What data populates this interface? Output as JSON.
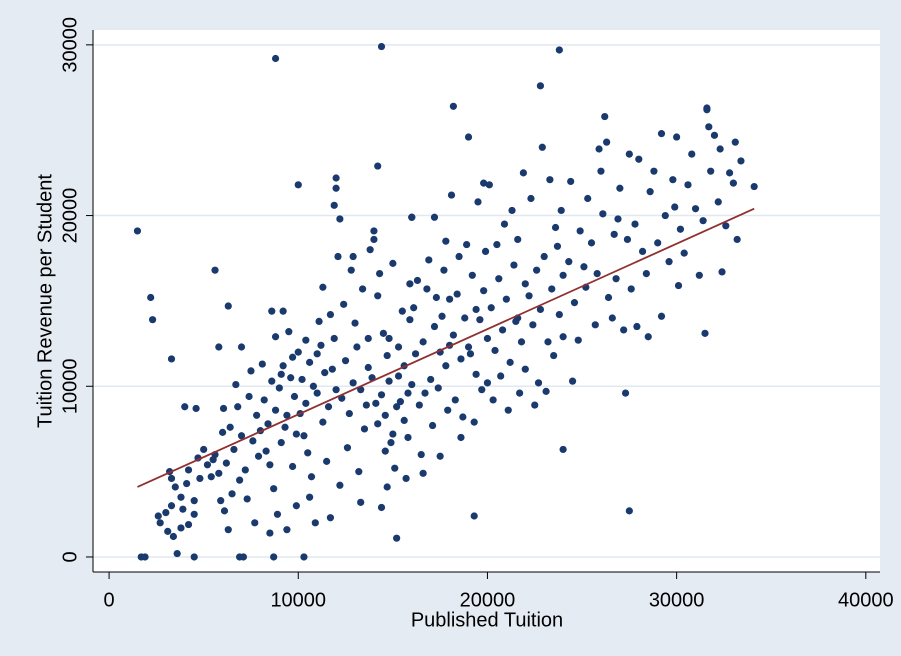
{
  "chart_data": {
    "type": "scatter",
    "xlabel": "Published Tuition",
    "ylabel": "Tuition Revenue per Student",
    "xlim": [
      -850,
      40750
    ],
    "ylim": [
      -880,
      30870
    ],
    "xticks": [
      0,
      10000,
      20000,
      30000,
      40000
    ],
    "yticks": [
      0,
      10000,
      20000,
      30000
    ],
    "grid": true,
    "scatter": {
      "color": "#1a3a6e",
      "x": [
        1500,
        2200,
        2300,
        8800,
        14400,
        23800,
        22800,
        18200,
        26200,
        31600,
        19000,
        29200,
        10000,
        14200,
        27500,
        27300,
        24000,
        19300,
        15200,
        1700,
        1900,
        4500,
        6900,
        7100,
        8700,
        10300,
        3300,
        5600,
        6300,
        5800,
        7000,
        4000,
        4600,
        8600,
        9200,
        17200,
        16000,
        25900,
        27500,
        33100,
        34100,
        3200,
        3300,
        3500,
        3800,
        4200,
        4500,
        3000,
        2600,
        2700,
        3400,
        3600,
        3800,
        4200,
        4500,
        4800,
        5000,
        5200,
        5400,
        4700,
        4100,
        3300,
        3100,
        3900,
        5600,
        5800,
        6000,
        6200,
        6400,
        6600,
        6800,
        7000,
        7200,
        7400,
        7600,
        7800,
        8000,
        6100,
        6300,
        6500,
        7300,
        7700,
        5900,
        6700,
        6900,
        7500,
        7900,
        5500,
        6050,
        8200,
        8400,
        8600,
        8800,
        9000,
        9200,
        9400,
        9600,
        9800,
        10000,
        8300,
        8500,
        8700,
        8900,
        9100,
        9300,
        9500,
        9700,
        9900,
        8100,
        8800,
        9400,
        9900,
        9100,
        9700,
        8500,
        10200,
        10400,
        10600,
        10800,
        11000,
        11200,
        11400,
        11600,
        11800,
        12000,
        10300,
        10500,
        10700,
        10900,
        11100,
        11300,
        11500,
        11700,
        11900,
        12000,
        12000,
        10100,
        10600,
        11300,
        11900,
        11000,
        10400,
        11700,
        12100,
        12200,
        12300,
        12500,
        12700,
        12900,
        13100,
        13300,
        13500,
        13700,
        13900,
        12400,
        12600,
        12800,
        13000,
        13200,
        13400,
        13600,
        13800,
        14000,
        14000,
        14100,
        13300,
        12900,
        12200,
        13700,
        14200,
        14400,
        14600,
        14800,
        15000,
        15200,
        15400,
        15600,
        15800,
        16000,
        14300,
        14500,
        14700,
        14900,
        15100,
        15300,
        15500,
        15700,
        15900,
        14400,
        14700,
        15800,
        14200,
        15000,
        15600,
        16000,
        14800,
        15300,
        14600,
        15900,
        16200,
        16400,
        16600,
        16800,
        17000,
        17200,
        17400,
        17600,
        17800,
        18000,
        16300,
        16500,
        16700,
        16900,
        17100,
        17300,
        17500,
        17700,
        17900,
        16100,
        17500,
        16600,
        17800,
        18000,
        18200,
        18400,
        18600,
        18800,
        19000,
        19200,
        19400,
        19600,
        19800,
        20000,
        18300,
        18500,
        18700,
        18900,
        19100,
        19300,
        19500,
        19700,
        19900,
        18100,
        19800,
        20000,
        18600,
        19400,
        20200,
        20400,
        20600,
        20800,
        21000,
        21200,
        21400,
        21600,
        21800,
        22000,
        20300,
        20500,
        20700,
        20900,
        21100,
        21300,
        21500,
        21700,
        21900,
        20100,
        21600,
        22000,
        22200,
        22400,
        22600,
        22800,
        23000,
        23200,
        23400,
        23600,
        23800,
        24000,
        22300,
        22700,
        22900,
        23100,
        23300,
        23500,
        23700,
        23900,
        22500,
        24000,
        24300,
        24600,
        24900,
        25200,
        25500,
        25800,
        26100,
        26400,
        26700,
        27000,
        24400,
        24800,
        25300,
        25700,
        26000,
        26300,
        26600,
        26900,
        24500,
        25100,
        26800,
        27200,
        27400,
        27800,
        28200,
        28600,
        29000,
        29400,
        29800,
        30200,
        30600,
        31000,
        31400,
        31800,
        32200,
        32600,
        33000,
        27600,
        28000,
        28400,
        28800,
        29200,
        29600,
        30000,
        30400,
        30800,
        31200,
        31500,
        31700,
        32000,
        32400,
        32800,
        33200,
        31600,
        30100,
        29900,
        28500,
        27900,
        33400,
        32300
      ],
      "values": [
        19100,
        15200,
        13900,
        29200,
        29900,
        29700,
        27600,
        26400,
        25800,
        26300,
        24600,
        24800,
        21800,
        22900,
        2700,
        9600,
        6300,
        2400,
        1100,
        0,
        0,
        0,
        0,
        0,
        0,
        0,
        11600,
        16800,
        14700,
        12300,
        12300,
        8800,
        8700,
        14400,
        14400,
        19900,
        19900,
        23900,
        23600,
        24300,
        21700,
        5000,
        4600,
        4100,
        3500,
        5100,
        3300,
        2600,
        2400,
        2000,
        1200,
        200,
        1700,
        1900,
        2500,
        4600,
        6300,
        5400,
        4700,
        5800,
        4300,
        3000,
        1500,
        2800,
        6000,
        4900,
        7300,
        5500,
        7600,
        6300,
        8800,
        7100,
        5100,
        9400,
        6800,
        8300,
        7400,
        2700,
        1600,
        3700,
        3400,
        2000,
        3300,
        10100,
        4500,
        10900,
        5900,
        5700,
        8700,
        9200,
        7800,
        10300,
        8600,
        9900,
        11200,
        8300,
        10500,
        9400,
        12000,
        6200,
        5400,
        4000,
        2500,
        6700,
        7600,
        13200,
        5300,
        3000,
        11300,
        12900,
        1600,
        7200,
        10700,
        11700,
        1400,
        10400,
        9000,
        11400,
        10000,
        9600,
        12400,
        10800,
        8800,
        11000,
        9800,
        7100,
        6100,
        4700,
        2000,
        13800,
        15800,
        5600,
        14200,
        20600,
        22200,
        21600,
        8400,
        3500,
        7900,
        12800,
        11900,
        12700,
        2300,
        17600,
        19800,
        9300,
        11500,
        8400,
        10200,
        12300,
        9800,
        7500,
        11100,
        10500,
        14800,
        6400,
        16800,
        13700,
        5000,
        15700,
        8900,
        18000,
        19100,
        18600,
        9000,
        3200,
        17600,
        4200,
        12800,
        7800,
        9500,
        8300,
        10300,
        7200,
        8800,
        9100,
        8000,
        9600,
        10100,
        16600,
        13100,
        11800,
        6700,
        5200,
        12300,
        14400,
        4600,
        16000,
        2900,
        4100,
        7000,
        15300,
        17200,
        11200,
        19900,
        12800,
        10600,
        6200,
        13900,
        11900,
        8900,
        12600,
        15700,
        10400,
        13500,
        9900,
        14100,
        11200,
        12400,
        16200,
        6000,
        9600,
        17400,
        7700,
        15200,
        12000,
        16800,
        8600,
        14600,
        5900,
        4900,
        18500,
        15100,
        13000,
        15400,
        11600,
        14000,
        12300,
        16500,
        10700,
        13900,
        15600,
        12800,
        9200,
        17600,
        8200,
        18300,
        11900,
        7900,
        20800,
        9800,
        17900,
        21200,
        21900,
        10200,
        7000,
        14500,
        14600,
        12100,
        16300,
        13300,
        15100,
        11400,
        17100,
        14000,
        12600,
        16000,
        9200,
        18300,
        10600,
        19500,
        8600,
        20300,
        13800,
        9600,
        22500,
        21800,
        18600,
        11000,
        15300,
        13600,
        16800,
        14500,
        17600,
        12600,
        15700,
        19300,
        14200,
        16500,
        21000,
        10200,
        24000,
        9700,
        22100,
        11800,
        18200,
        20300,
        8900,
        12900,
        17300,
        14900,
        19100,
        15800,
        18400,
        16600,
        20100,
        15200,
        18900,
        21600,
        22000,
        12700,
        21000,
        13600,
        22600,
        24300,
        14000,
        19800,
        10300,
        17000,
        16300,
        13300,
        18600,
        19500,
        17900,
        21400,
        18400,
        20000,
        22100,
        19200,
        21800,
        20400,
        19700,
        22600,
        20800,
        19400,
        21900,
        15700,
        23300,
        16600,
        22600,
        14100,
        17300,
        24600,
        17800,
        23600,
        16500,
        13100,
        25200,
        24700,
        16700,
        22500,
        18600,
        26200,
        15900,
        20500,
        12900,
        13500,
        23200,
        23900
      ]
    },
    "fit": {
      "color": "#903030",
      "x": [
        1500,
        34100
      ],
      "values": [
        4100,
        20400
      ]
    }
  }
}
